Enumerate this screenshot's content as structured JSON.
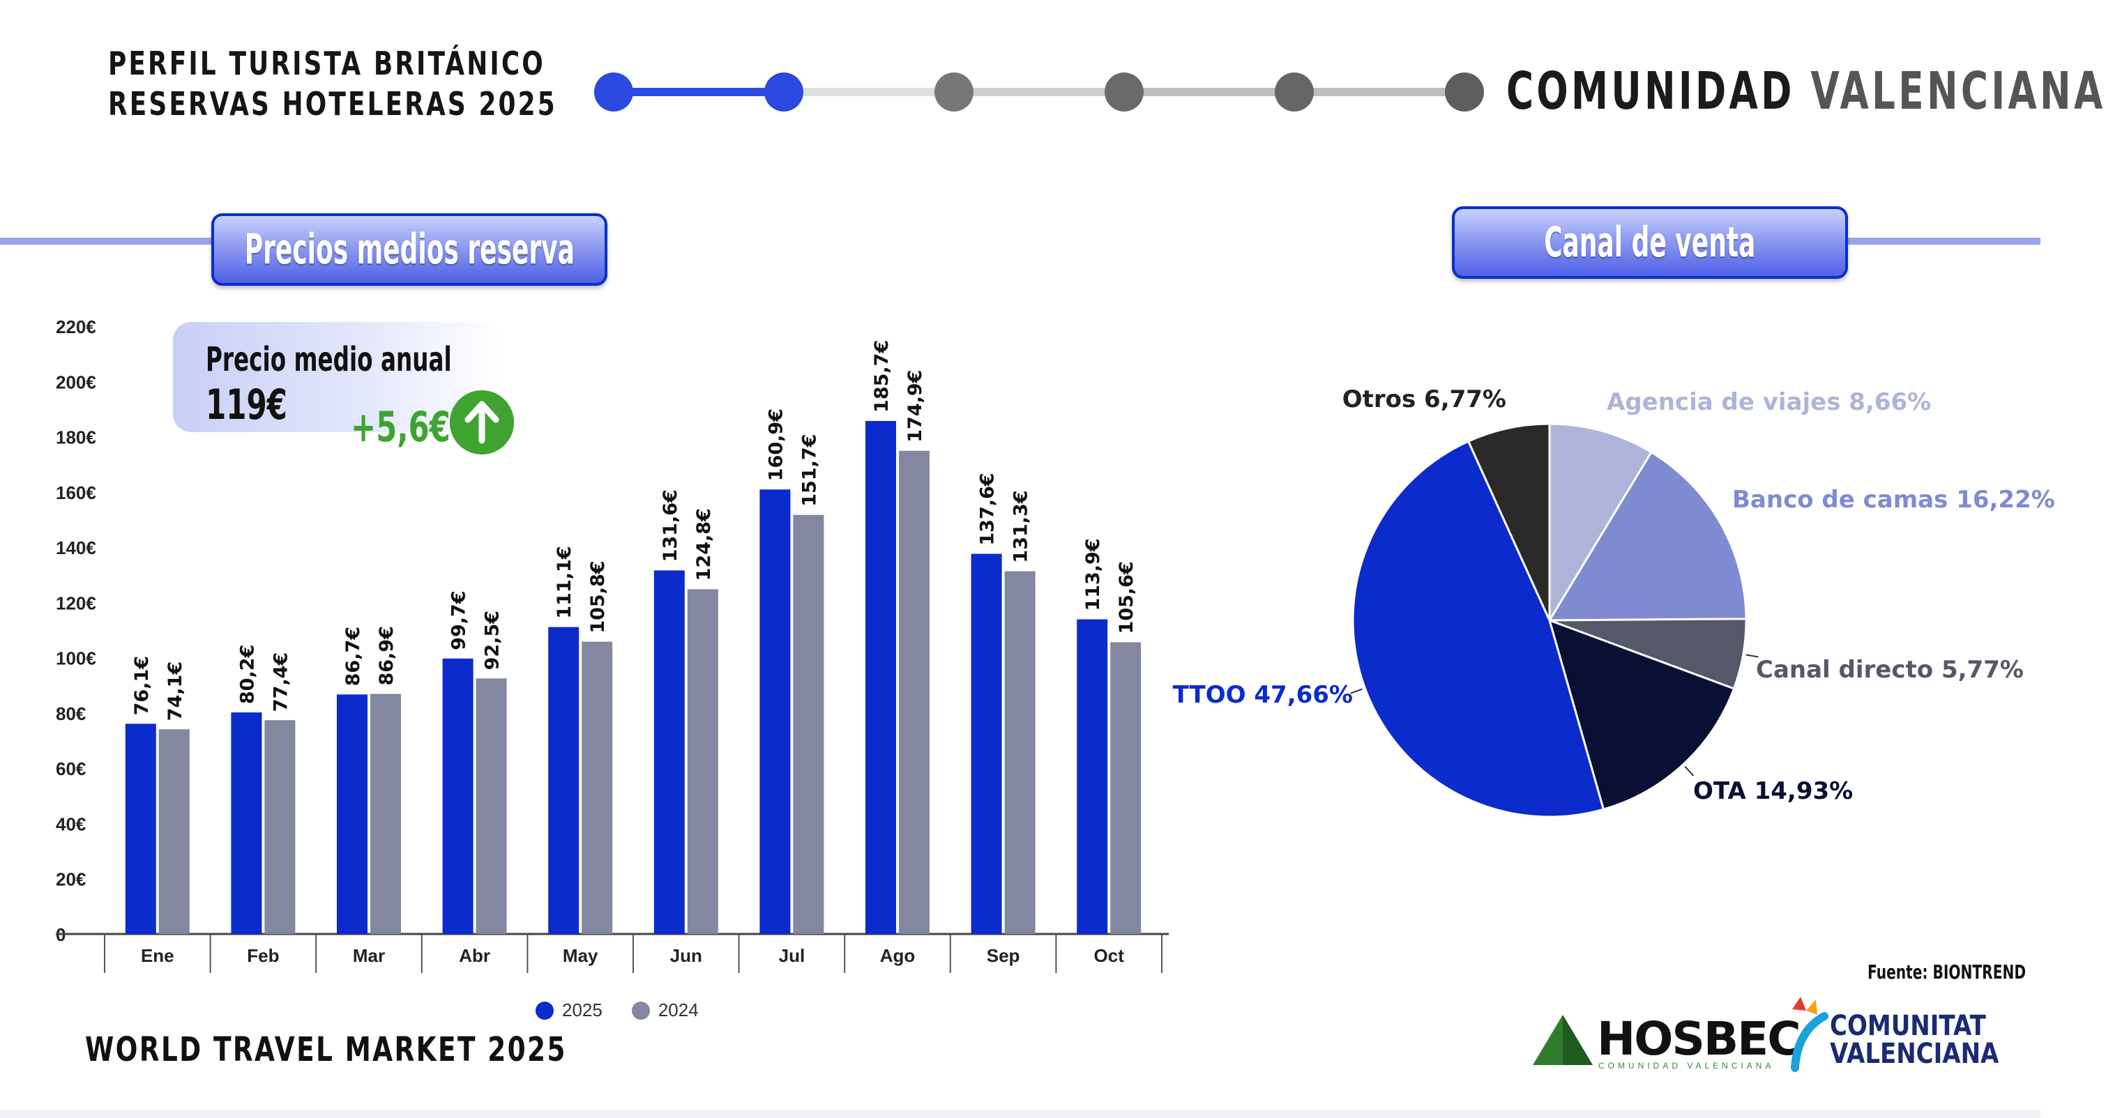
{
  "header": {
    "title_line1": "PERFIL TURISTA BRITÁNICO",
    "title_line2": "RESERVAS HOTELERAS 2025",
    "region_word1": "COMUNIDAD",
    "region_word2": "VALENCIANA",
    "progress_steps_total": 6,
    "progress_active_step": 2
  },
  "sections": {
    "prices_title": "Precios medios reserva",
    "channel_title": "Canal de venta"
  },
  "kpi": {
    "label": "Precio medio anual",
    "value": "119€",
    "change": "+5,6€",
    "icon": "arrow-up-circle-icon"
  },
  "chart_data": [
    {
      "type": "bar",
      "title": "Precios medios reserva",
      "categories": [
        "Ene",
        "Feb",
        "Mar",
        "Abr",
        "May",
        "Jun",
        "Jul",
        "Ago",
        "Sep",
        "Oct"
      ],
      "series": [
        {
          "name": "2025",
          "color": "#0b2bcc",
          "values": [
            76.1,
            80.2,
            86.7,
            99.7,
            111.1,
            131.6,
            160.9,
            185.7,
            137.6,
            113.9
          ],
          "labels": [
            "76,1€",
            "80,2€",
            "86,7€",
            "99,7€",
            "111,1€",
            "131,6€",
            "160,9€",
            "185,7€",
            "137,6€",
            "113,9€"
          ]
        },
        {
          "name": "2024",
          "color": "#83879f",
          "values": [
            74.1,
            77.4,
            86.9,
            92.5,
            105.8,
            124.8,
            151.7,
            174.9,
            131.3,
            105.6
          ],
          "labels": [
            "74,1€",
            "77,4€",
            "86,9€",
            "92,5€",
            "105,8€",
            "124,8€",
            "151,7€",
            "174,9€",
            "131,3€",
            "105,6€"
          ]
        }
      ],
      "ylim": [
        0,
        220
      ],
      "yticks": [
        "0",
        "20€",
        "40€",
        "60€",
        "80€",
        "100€",
        "120€",
        "140€",
        "160€",
        "180€",
        "200€",
        "220€"
      ],
      "grid": false,
      "legend": "bottom"
    },
    {
      "type": "pie",
      "title": "Canal de venta",
      "slices": [
        {
          "label": "Agencia de viajes 8,66%",
          "value": 8.66,
          "color": "#aeb4d8",
          "label_color": "#aeb4d8"
        },
        {
          "label": "Banco de camas 16,22%",
          "value": 16.22,
          "color": "#7f8bd1",
          "label_color": "#7f8bd1"
        },
        {
          "label": "Canal directo 5,77%",
          "value": 5.77,
          "color": "#545868",
          "label_color": "#545868"
        },
        {
          "label": "OTA 14,93%",
          "value": 14.93,
          "color": "#0a1033",
          "label_color": "#0a1033"
        },
        {
          "label": "TTOO 47,66%",
          "value": 47.66,
          "color": "#0b2bcc",
          "label_color": "#0b2bcc"
        },
        {
          "label": "Otros 6,77%",
          "value": 6.77,
          "color": "#2b2a28",
          "label_color": "#222222"
        }
      ]
    }
  ],
  "footer": {
    "event": "WORLD TRAVEL MARKET 2025",
    "source": "Fuente: BIONTREND",
    "logo_hosbec": "HOSBEC",
    "logo_hosbec_sub": "COMUNIDAD VALENCIANA",
    "logo_cv_line1": "COMUNITAT",
    "logo_cv_line2": "VALENCIANA"
  }
}
